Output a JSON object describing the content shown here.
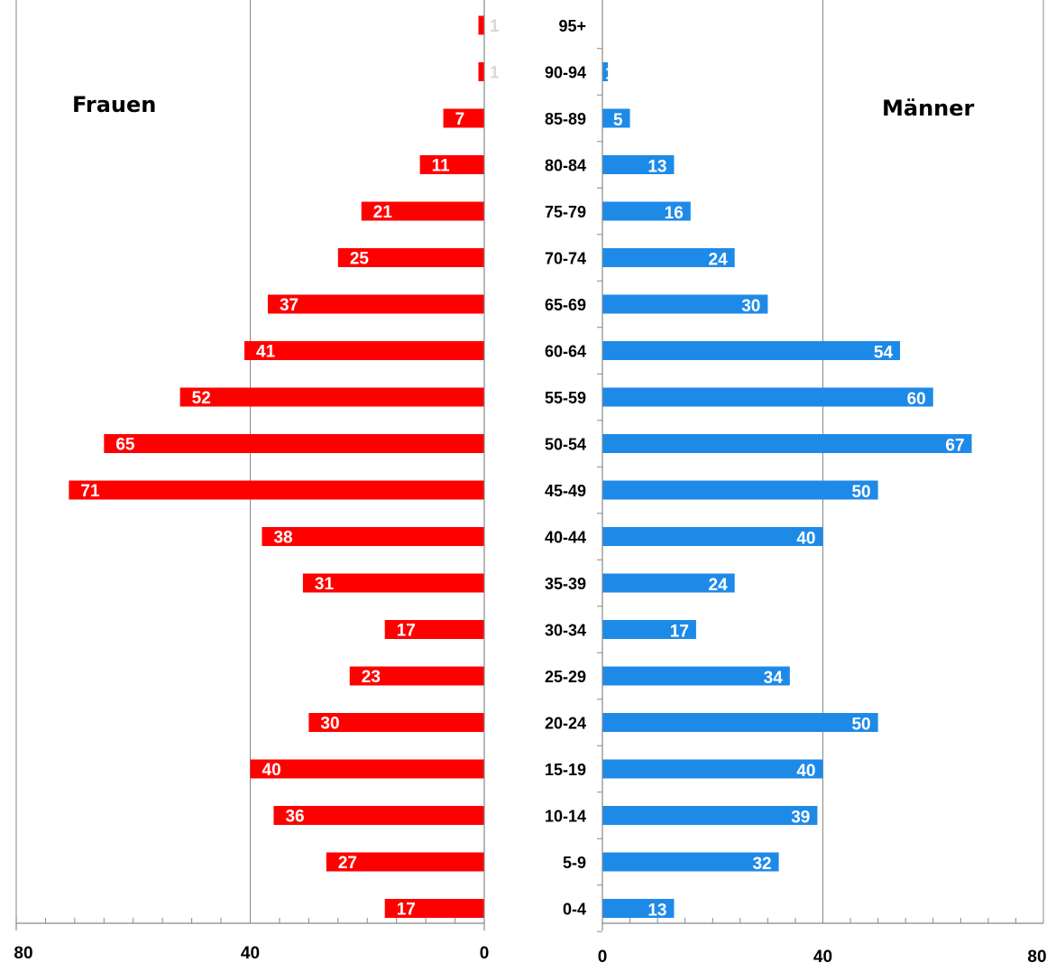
{
  "chart_data": {
    "type": "bar",
    "orientation": "horizontal-pyramid",
    "categories": [
      "0-4",
      "5-9",
      "10-14",
      "15-19",
      "20-24",
      "25-29",
      "30-34",
      "35-39",
      "40-44",
      "45-49",
      "50-54",
      "55-59",
      "60-64",
      "65-69",
      "70-74",
      "75-79",
      "80-84",
      "85-89",
      "90-94",
      "95+"
    ],
    "series": [
      {
        "name": "Frauen",
        "side": "left",
        "color": "#ff0000",
        "values": [
          17,
          27,
          36,
          40,
          30,
          23,
          17,
          31,
          38,
          71,
          65,
          52,
          41,
          37,
          25,
          21,
          11,
          7,
          1,
          1
        ]
      },
      {
        "name": "Männer",
        "side": "right",
        "color": "#1e8ae8",
        "values": [
          13,
          32,
          39,
          40,
          50,
          34,
          17,
          24,
          40,
          50,
          67,
          60,
          54,
          30,
          24,
          16,
          13,
          5,
          1,
          0
        ]
      }
    ],
    "xlim": [
      0,
      80
    ],
    "xticks": [
      0,
      40,
      80
    ],
    "left_tick_labels": [
      "80",
      "40",
      "0"
    ],
    "right_tick_labels": [
      "0",
      "40",
      "80"
    ],
    "grid": true,
    "data_labels": true
  }
}
